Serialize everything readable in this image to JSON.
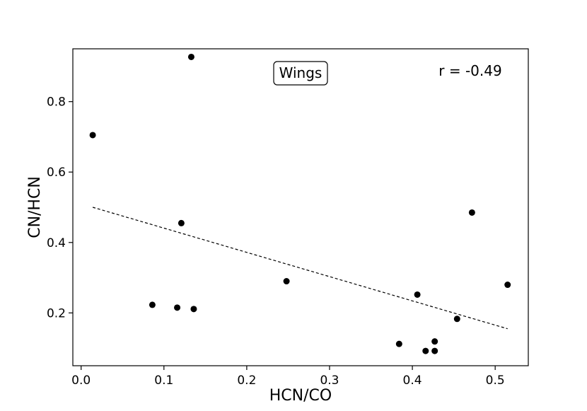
{
  "chart_data": {
    "type": "scatter",
    "xlabel": "HCN/CO",
    "ylabel": "CN/HCN",
    "xlim": [
      -0.01,
      0.54
    ],
    "ylim": [
      0.05,
      0.95
    ],
    "xticks": [
      "0.0",
      "0.1",
      "0.2",
      "0.3",
      "0.4",
      "0.5"
    ],
    "yticks": [
      "0.2",
      "0.4",
      "0.6",
      "0.8"
    ],
    "grid": false,
    "legend": "none",
    "label_box": "Wings",
    "r_text": "r = -0.49",
    "points": [
      {
        "x": 0.014,
        "y": 0.705
      },
      {
        "x": 0.133,
        "y": 0.927
      },
      {
        "x": 0.121,
        "y": 0.455
      },
      {
        "x": 0.086,
        "y": 0.223
      },
      {
        "x": 0.116,
        "y": 0.215
      },
      {
        "x": 0.136,
        "y": 0.211
      },
      {
        "x": 0.248,
        "y": 0.29
      },
      {
        "x": 0.384,
        "y": 0.112
      },
      {
        "x": 0.406,
        "y": 0.252
      },
      {
        "x": 0.416,
        "y": 0.092
      },
      {
        "x": 0.427,
        "y": 0.092
      },
      {
        "x": 0.427,
        "y": 0.119
      },
      {
        "x": 0.454,
        "y": 0.183
      },
      {
        "x": 0.472,
        "y": 0.485
      },
      {
        "x": 0.515,
        "y": 0.28
      }
    ],
    "fit_line": {
      "x": [
        0.014,
        0.515
      ],
      "y": [
        0.5,
        0.155
      ],
      "style": "dashed"
    },
    "colors": {
      "points": "#000000",
      "line": "#000000"
    }
  }
}
